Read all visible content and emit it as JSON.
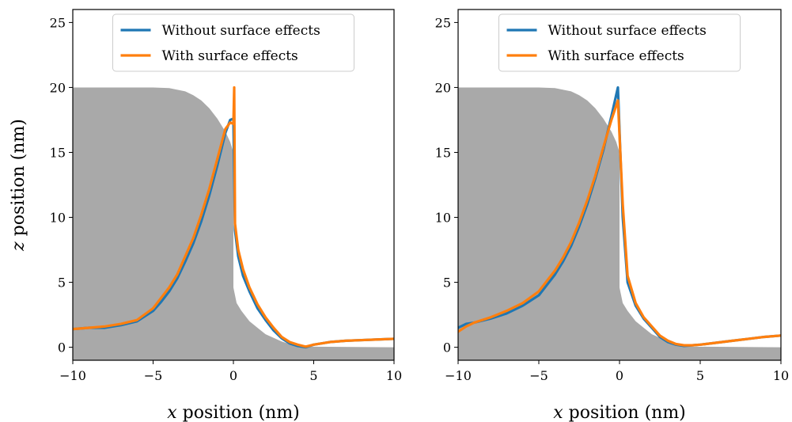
{
  "chart_data": [
    {
      "type": "line",
      "title": "",
      "xlabel_var": "x",
      "xlabel_rest": " position (nm)",
      "ylabel_var": "z",
      "ylabel_rest": " position (nm)",
      "xlim": [
        -10,
        10
      ],
      "ylim": [
        -1,
        26
      ],
      "xticks": [
        -10,
        -5,
        0,
        5,
        10
      ],
      "yticks": [
        0,
        5,
        10,
        15,
        20,
        25
      ],
      "xtick_labels": [
        "−10",
        "−5",
        "0",
        "5",
        "10"
      ],
      "ytick_labels": [
        "0",
        "5",
        "10",
        "15",
        "20",
        "25"
      ],
      "grid": false,
      "legend_position": "top-center",
      "surface": {
        "color": "#a9a9a9",
        "x": [
          -10,
          -5,
          -4,
          -3,
          -2.5,
          -2,
          -1.5,
          -1,
          -0.5,
          -0.2,
          0,
          0,
          0.2,
          0.5,
          1,
          1.5,
          2,
          3,
          4,
          10
        ],
        "y": [
          20,
          20,
          19.95,
          19.7,
          19.4,
          19.0,
          18.4,
          17.6,
          16.6,
          15.8,
          15.0,
          4.6,
          3.4,
          2.8,
          2.0,
          1.5,
          1.0,
          0.45,
          0.05,
          0
        ]
      },
      "series": [
        {
          "name": "Without surface effects",
          "color": "#1f77b4",
          "x": [
            -10,
            -9,
            -8,
            -7,
            -6,
            -5,
            -4.5,
            -4,
            -3.5,
            -3,
            -2.5,
            -2,
            -1.5,
            -1,
            -0.5,
            -0.2,
            0,
            0.1,
            0.3,
            0.6,
            1,
            1.5,
            2,
            2.5,
            3,
            3.5,
            4,
            4.5,
            5,
            6,
            7,
            8,
            9,
            10
          ],
          "y": [
            1.4,
            1.5,
            1.5,
            1.7,
            2.0,
            2.8,
            3.5,
            4.3,
            5.3,
            6.6,
            8.0,
            9.7,
            11.7,
            14.0,
            16.5,
            17.5,
            17.6,
            9.0,
            7.0,
            5.5,
            4.3,
            3.0,
            2.1,
            1.3,
            0.7,
            0.3,
            0.1,
            0.0,
            0.2,
            0.4,
            0.5,
            0.55,
            0.6,
            0.65
          ]
        },
        {
          "name": "With surface effects",
          "color": "#ff7f0e",
          "x": [
            -10,
            -9,
            -8,
            -7,
            -6,
            -5,
            -4.5,
            -4,
            -3.5,
            -3,
            -2.5,
            -2,
            -1.5,
            -1,
            -0.5,
            -0.2,
            0,
            0.05,
            0.1,
            0.3,
            0.6,
            1,
            1.5,
            2,
            2.5,
            3,
            3.5,
            4,
            4.5,
            5,
            6,
            7,
            8,
            9,
            10
          ],
          "y": [
            1.4,
            1.5,
            1.6,
            1.8,
            2.1,
            3.0,
            3.8,
            4.6,
            5.6,
            7.0,
            8.4,
            10.2,
            12.2,
            14.5,
            16.8,
            17.3,
            17.2,
            20.0,
            9.5,
            7.5,
            6.0,
            4.6,
            3.3,
            2.3,
            1.5,
            0.8,
            0.4,
            0.2,
            0.05,
            0.2,
            0.4,
            0.5,
            0.55,
            0.6,
            0.65
          ]
        }
      ]
    },
    {
      "type": "line",
      "title": "",
      "xlabel_var": "x",
      "xlabel_rest": " position (nm)",
      "ylabel_var": "",
      "ylabel_rest": "",
      "xlim": [
        -10,
        10
      ],
      "ylim": [
        -1,
        26
      ],
      "xticks": [
        -10,
        -5,
        0,
        5,
        10
      ],
      "yticks": [
        0,
        5,
        10,
        15,
        20,
        25
      ],
      "xtick_labels": [
        "−10",
        "−5",
        "0",
        "5",
        "10"
      ],
      "ytick_labels": [
        "0",
        "5",
        "10",
        "15",
        "20",
        "25"
      ],
      "grid": false,
      "legend_position": "top-center",
      "surface": {
        "color": "#a9a9a9",
        "x": [
          -10,
          -5,
          -4,
          -3,
          -2.5,
          -2,
          -1.5,
          -1,
          -0.5,
          -0.2,
          0,
          0,
          0.2,
          0.5,
          1,
          1.5,
          2,
          3,
          4,
          10
        ],
        "y": [
          20,
          20,
          19.95,
          19.7,
          19.4,
          19.0,
          18.4,
          17.6,
          16.6,
          15.8,
          15.0,
          4.6,
          3.4,
          2.8,
          2.0,
          1.5,
          1.0,
          0.45,
          0.05,
          0
        ]
      },
      "series": [
        {
          "name": "Without surface effects",
          "color": "#1f77b4",
          "x": [
            -10,
            -9.5,
            -9,
            -8,
            -7,
            -6,
            -5,
            -4.5,
            -4,
            -3.5,
            -3,
            -2.5,
            -2,
            -1.5,
            -1,
            -0.5,
            -0.1,
            0.2,
            0.5,
            1,
            1.5,
            2,
            2.5,
            3,
            3.5,
            4,
            4.5,
            5,
            6,
            7,
            8,
            9,
            10
          ],
          "y": [
            1.5,
            1.8,
            1.9,
            2.2,
            2.6,
            3.2,
            4.0,
            4.8,
            5.6,
            6.6,
            7.8,
            9.3,
            11.0,
            13.0,
            15.2,
            17.8,
            20.0,
            10.0,
            5.0,
            3.2,
            2.2,
            1.5,
            0.8,
            0.4,
            0.2,
            0.1,
            0.15,
            0.2,
            0.35,
            0.5,
            0.65,
            0.8,
            0.9
          ]
        },
        {
          "name": "With surface effects",
          "color": "#ff7f0e",
          "x": [
            -10,
            -9.5,
            -9,
            -8,
            -7,
            -6,
            -5,
            -4.5,
            -4,
            -3.5,
            -3,
            -2.5,
            -2,
            -1.5,
            -1,
            -0.5,
            -0.1,
            0.2,
            0.5,
            1,
            1.5,
            2,
            2.5,
            3,
            3.5,
            4,
            4.5,
            5,
            6,
            7,
            8,
            9,
            10
          ],
          "y": [
            1.2,
            1.6,
            1.9,
            2.3,
            2.8,
            3.4,
            4.3,
            5.1,
            5.9,
            6.9,
            8.1,
            9.6,
            11.3,
            13.2,
            15.4,
            17.5,
            19.0,
            11.0,
            5.5,
            3.4,
            2.3,
            1.6,
            0.9,
            0.5,
            0.25,
            0.15,
            0.15,
            0.2,
            0.35,
            0.5,
            0.65,
            0.8,
            0.9
          ]
        }
      ]
    }
  ]
}
